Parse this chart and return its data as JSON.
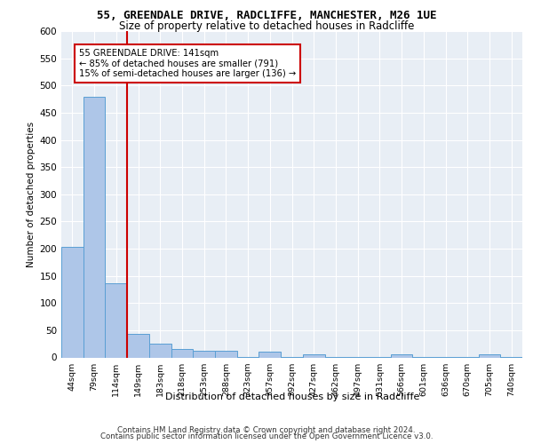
{
  "title_line1": "55, GREENDALE DRIVE, RADCLIFFE, MANCHESTER, M26 1UE",
  "title_line2": "Size of property relative to detached houses in Radcliffe",
  "xlabel": "Distribution of detached houses by size in Radcliffe",
  "ylabel": "Number of detached properties",
  "footer_line1": "Contains HM Land Registry data © Crown copyright and database right 2024.",
  "footer_line2": "Contains public sector information licensed under the Open Government Licence v3.0.",
  "bin_labels": [
    "44sqm",
    "79sqm",
    "114sqm",
    "149sqm",
    "183sqm",
    "218sqm",
    "253sqm",
    "288sqm",
    "323sqm",
    "357sqm",
    "392sqm",
    "427sqm",
    "462sqm",
    "497sqm",
    "531sqm",
    "566sqm",
    "601sqm",
    "636sqm",
    "670sqm",
    "705sqm",
    "740sqm"
  ],
  "bar_values": [
    204,
    479,
    136,
    43,
    25,
    15,
    13,
    12,
    1,
    10,
    1,
    5,
    1,
    1,
    1,
    5,
    1,
    1,
    1,
    5,
    1
  ],
  "property_line_x": 2.5,
  "annotation_text": "55 GREENDALE DRIVE: 141sqm\n← 85% of detached houses are smaller (791)\n15% of semi-detached houses are larger (136) →",
  "bar_color": "#aec6e8",
  "bar_edge_color": "#5a9fd4",
  "vline_color": "#cc0000",
  "bg_color": "#e8eef5",
  "ylim": [
    0,
    600
  ],
  "yticks": [
    0,
    50,
    100,
    150,
    200,
    250,
    300,
    350,
    400,
    450,
    500,
    550,
    600
  ]
}
